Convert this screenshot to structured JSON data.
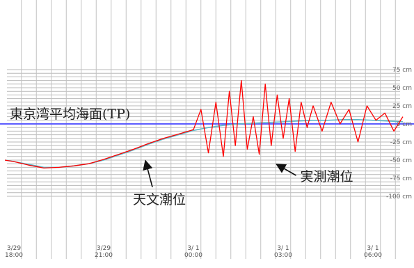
{
  "chart_data": {
    "type": "line",
    "y_unit_suffix": "cm",
    "ylim": [
      -100,
      75
    ],
    "y_ticks": [
      75,
      50,
      25,
      0,
      -25,
      -50,
      -75,
      -100
    ],
    "y_tick_labels": [
      "75 cm",
      "50 cm",
      "25 cm",
      "0 cm",
      "-25 cm",
      "-50 cm",
      "-75 cm",
      "-100 cm"
    ],
    "x_ticks": [
      {
        "date": "3/29",
        "time": "18:00",
        "hour": 0
      },
      {
        "date": "3/29",
        "time": "21:00",
        "hour": 3
      },
      {
        "date": "3/ 1",
        "time": "00:00",
        "hour": 6
      },
      {
        "date": "3/ 1",
        "time": "03:00",
        "hour": 9
      },
      {
        "date": "3/ 1",
        "time": "06:00",
        "hour": 12
      }
    ],
    "xlim_hours": [
      -0.3,
      13.0
    ],
    "grid": true,
    "reference_line": {
      "label": "東京湾平均海面(TP)",
      "y": 0,
      "color": "#6060ff"
    },
    "series": [
      {
        "name": "天文潮位",
        "color": "#5fb8c8",
        "x_hours": [
          -0.3,
          0,
          0.5,
          1.0,
          1.5,
          2.0,
          2.5,
          3.0,
          3.5,
          4.0,
          4.5,
          5.0,
          5.5,
          6.0,
          6.5,
          7.0,
          7.5,
          8.0,
          8.5,
          9.0,
          9.5,
          10.0,
          10.5,
          11.0,
          11.5,
          12.0,
          12.5,
          13.0
        ],
        "values": [
          -50,
          -52,
          -56,
          -60,
          -60,
          -58,
          -55,
          -50,
          -43,
          -36,
          -28,
          -21,
          -15,
          -9,
          -5,
          -2,
          0,
          1,
          2,
          3,
          4,
          5,
          5,
          6,
          6,
          5,
          4,
          3
        ]
      },
      {
        "name": "実測潮位",
        "color": "#ff0000",
        "x_hours": [
          -0.3,
          0,
          0.5,
          1.0,
          1.5,
          2.0,
          2.5,
          3.0,
          3.5,
          4.0,
          4.5,
          5.0,
          5.5,
          6.0,
          6.25,
          6.5,
          6.75,
          7.0,
          7.2,
          7.4,
          7.6,
          7.8,
          8.0,
          8.2,
          8.4,
          8.6,
          8.8,
          9.0,
          9.2,
          9.4,
          9.6,
          9.8,
          10.0,
          10.3,
          10.6,
          10.9,
          11.2,
          11.5,
          11.8,
          12.1,
          12.4,
          12.7,
          13.0
        ],
        "values": [
          -50,
          -52,
          -57,
          -61,
          -60,
          -58,
          -55,
          -49,
          -42,
          -35,
          -27,
          -20,
          -14,
          -8,
          20,
          -40,
          30,
          -45,
          45,
          -30,
          60,
          -35,
          10,
          -42,
          55,
          -30,
          40,
          -20,
          35,
          -38,
          30,
          -5,
          25,
          -10,
          30,
          0,
          20,
          -25,
          25,
          5,
          15,
          -10,
          10
        ]
      }
    ],
    "annotations": [
      {
        "text": "天文潮位",
        "x_hour": 4.35,
        "y": -47
      },
      {
        "text": "実測潮位",
        "x_hour": 8.5,
        "y": -50
      }
    ]
  }
}
